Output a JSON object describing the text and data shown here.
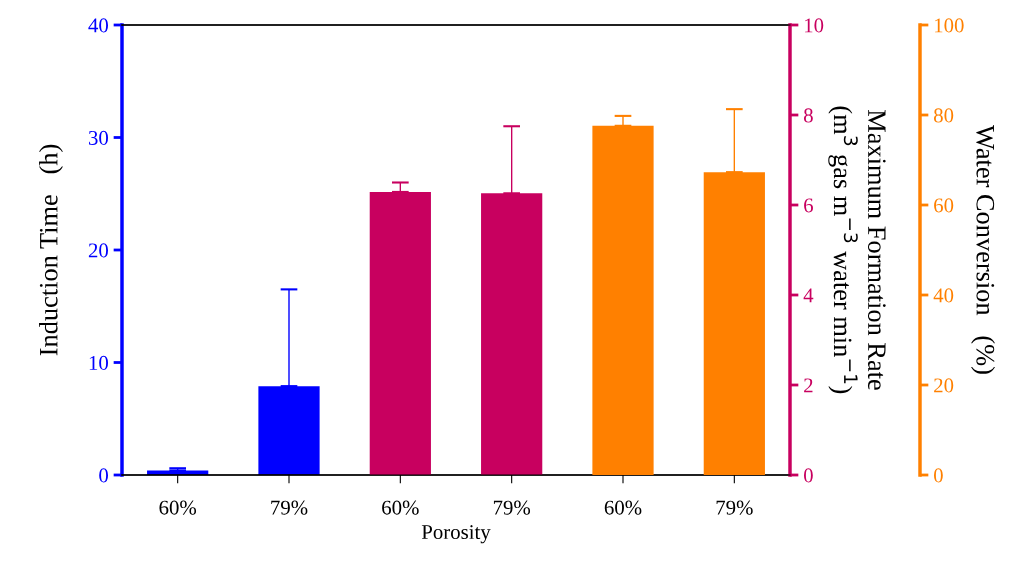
{
  "chart_data": {
    "type": "bar",
    "xlabel": "Porosity",
    "ylabel": "Induction Time   (h)",
    "y2label": "Maximum Formation Rate\n(m$^{3}$ gas m$^{−3}$ water min$^{−1}$)",
    "y3label": "Water Conversion   (%)",
    "categories": [
      "60%",
      "79%",
      "60%",
      "79%",
      "60%",
      "79%"
    ],
    "ylim": [
      0,
      40
    ],
    "yticks": [
      0,
      10,
      20,
      30,
      40
    ],
    "y2lim": [
      0,
      10
    ],
    "y2ticks": [
      0,
      2,
      4,
      6,
      8,
      10
    ],
    "y3lim": [
      0,
      100
    ],
    "y3ticks": [
      0,
      20,
      40,
      60,
      80,
      100
    ],
    "grid": false,
    "legend": false,
    "series": [
      {
        "color": "#0000ff",
        "axis": "y",
        "values": [
          0.4,
          7.9,
          null,
          null,
          null,
          null
        ],
        "errors": [
          [
            0.4,
            0.6
          ],
          [
            7.9,
            16.5
          ],
          null,
          null,
          null,
          null
        ]
      },
      {
        "color": "#c8005f",
        "axis": "y2",
        "values": [
          null,
          null,
          6.29,
          6.26,
          null,
          null
        ],
        "errors": [
          null,
          null,
          [
            6.29,
            6.5
          ],
          [
            6.26,
            7.75
          ],
          null,
          null
        ]
      },
      {
        "color": "#ff8000",
        "axis": "y3",
        "values": [
          null,
          null,
          null,
          null,
          77.6,
          67.3
        ],
        "errors": [
          null,
          null,
          null,
          null,
          [
            77.6,
            79.8
          ],
          [
            67.3,
            81.3
          ]
        ]
      }
    ]
  }
}
